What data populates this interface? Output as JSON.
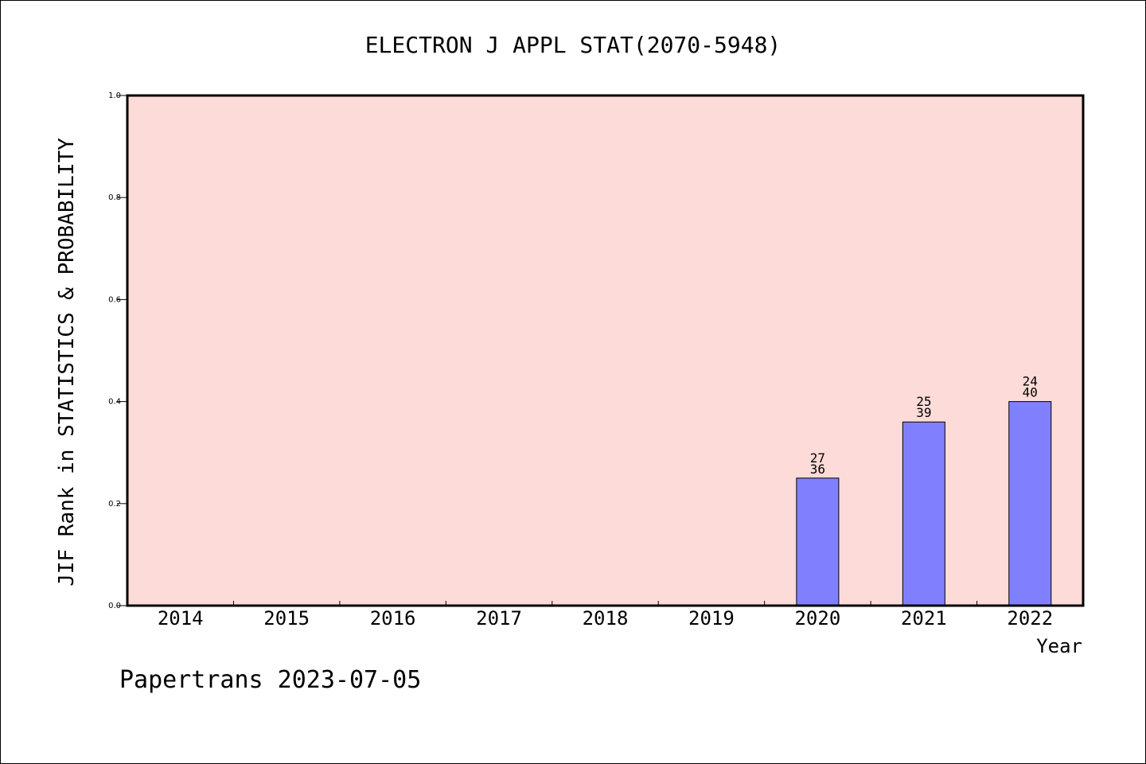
{
  "chart_data": {
    "type": "bar",
    "title": "ELECTRON J APPL STAT(2070-5948)",
    "xlabel": "Year",
    "ylabel": "JIF Rank in STATISTICS & PROBABILITY",
    "ylim": [
      0,
      1.0
    ],
    "yticks": [
      "0.0",
      "0.2",
      "0.4",
      "0.6",
      "0.8",
      "1.0"
    ],
    "categories": [
      "2014",
      "2015",
      "2016",
      "2017",
      "2018",
      "2019",
      "2020",
      "2021",
      "2022"
    ],
    "values": [
      null,
      null,
      null,
      null,
      null,
      null,
      0.25,
      0.36,
      0.4
    ],
    "annotations": [
      null,
      null,
      null,
      null,
      null,
      null,
      {
        "top": "27",
        "bottom": "36"
      },
      {
        "top": "25",
        "bottom": "39"
      },
      {
        "top": "24",
        "bottom": "40"
      }
    ],
    "grid": false,
    "colors": {
      "plot_background": "#fddbd8",
      "bar_fill": "#8080ff",
      "bar_stroke": "#000000"
    }
  },
  "footer": {
    "credit": "Papertrans 2023-07-05"
  }
}
